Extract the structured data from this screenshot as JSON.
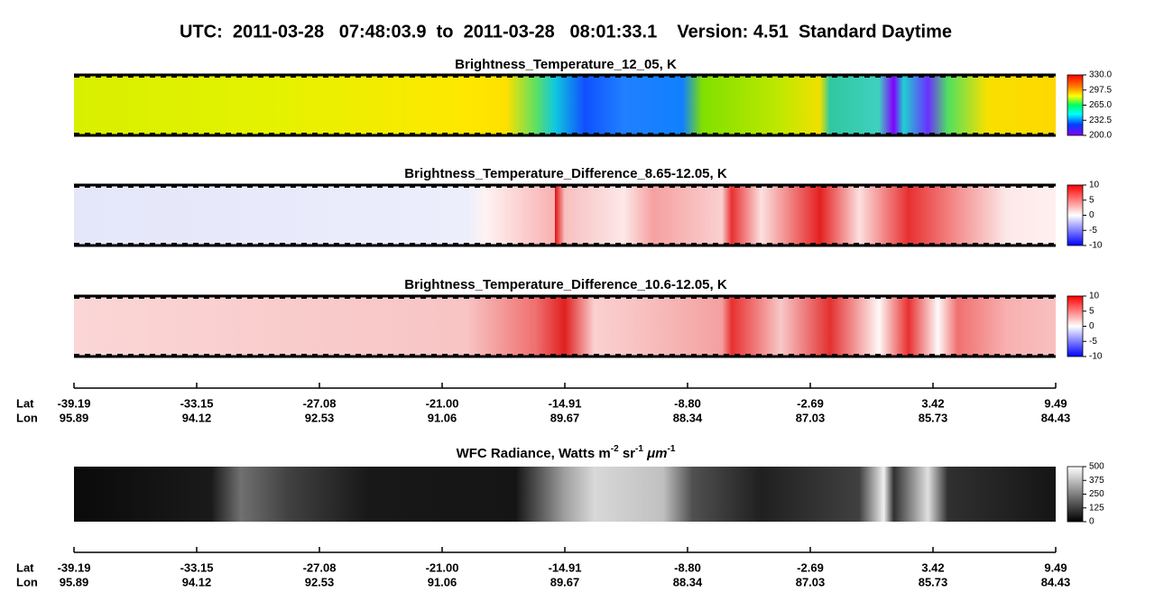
{
  "header": {
    "title": "UTC:  2011-03-28   07:48:03.9  to  2011-03-28   08:01:33.1    Version: 4.51  Standard Daytime"
  },
  "panels": [
    {
      "title": "Brightness_Temperature_12_05, K",
      "colorbar_ticks": [
        "330.0",
        "297.5",
        "265.0",
        "232.5",
        "200.0"
      ]
    },
    {
      "title": "Brightness_Temperature_Difference_8.65-12.05, K",
      "colorbar_ticks": [
        "10",
        "5",
        "0",
        "-5",
        "-10"
      ]
    },
    {
      "title": "Brightness_Temperature_Difference_10.6-12.05, K",
      "colorbar_ticks": [
        "10",
        "5",
        "0",
        "-5",
        "-10"
      ]
    },
    {
      "title_parts": [
        "WFC Radiance, Watts m",
        "-2",
        " sr",
        "-1",
        " μm",
        "-1"
      ],
      "colorbar_ticks": [
        "500",
        "375",
        "250",
        "125",
        "0"
      ]
    }
  ],
  "axes": [
    {
      "row_labels": [
        "Lat",
        "Lon"
      ],
      "lat": [
        "-39.19",
        "-33.15",
        "-27.08",
        "-21.00",
        "-14.91",
        "-8.80",
        "-2.69",
        "3.42",
        "9.49"
      ],
      "lon": [
        "95.89",
        "94.12",
        "92.53",
        "91.06",
        "89.67",
        "88.34",
        "87.03",
        "85.73",
        "84.43"
      ]
    },
    {
      "row_labels": [
        "Lat",
        "Lon"
      ],
      "lat": [
        "-39.19",
        "-33.15",
        "-27.08",
        "-21.00",
        "-14.91",
        "-8.80",
        "-2.69",
        "3.42",
        "9.49"
      ],
      "lon": [
        "95.89",
        "94.12",
        "92.53",
        "91.06",
        "89.67",
        "88.34",
        "87.03",
        "85.73",
        "84.43"
      ]
    }
  ]
}
